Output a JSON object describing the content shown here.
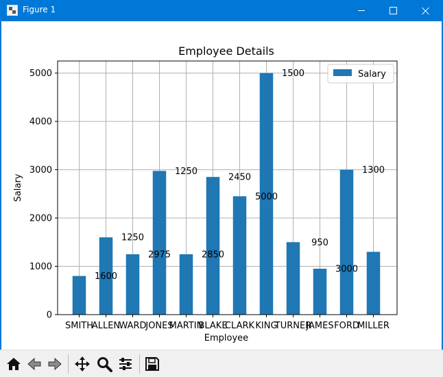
{
  "window": {
    "title": "Figure 1"
  },
  "toolbar": {
    "buttons": [
      {
        "name": "home-button",
        "icon": "home-icon"
      },
      {
        "name": "back-button",
        "icon": "back-arrow-icon"
      },
      {
        "name": "forward-button",
        "icon": "forward-arrow-icon"
      },
      {
        "name": "pan-button",
        "icon": "move-icon"
      },
      {
        "name": "zoom-button",
        "icon": "magnifier-icon"
      },
      {
        "name": "configure-subplots-button",
        "icon": "sliders-icon"
      },
      {
        "name": "save-button",
        "icon": "floppy-disk-icon"
      }
    ]
  },
  "chart_data": {
    "type": "bar",
    "title": "Employee Details",
    "xlabel": "Employee",
    "ylabel": "Salary",
    "categories": [
      "SMITH",
      "ALLEN",
      "WARD",
      "JONES",
      "MARTIN",
      "BLAKE",
      "CLARK",
      "KING",
      "TURNER",
      "JAMES",
      "FORD",
      "MILLER"
    ],
    "series": [
      {
        "name": "Salary",
        "values": [
          800,
          1600,
          1250,
          2975,
          1250,
          2850,
          2450,
          5000,
          1500,
          950,
          3000,
          1300
        ],
        "color": "#1f77b4"
      }
    ],
    "ylim": [
      0,
      5250
    ],
    "yticks": [
      0,
      1000,
      2000,
      3000,
      4000,
      5000
    ],
    "grid": true,
    "legend": "top-right",
    "annotations": [
      {
        "text": "1600",
        "x": 1,
        "y": 800
      },
      {
        "text": "1250",
        "x": 2,
        "y": 1600
      },
      {
        "text": "2975",
        "x": 3,
        "y": 1250
      },
      {
        "text": "1250",
        "x": 4,
        "y": 2975
      },
      {
        "text": "2850",
        "x": 5,
        "y": 1250
      },
      {
        "text": "2450",
        "x": 6,
        "y": 2850
      },
      {
        "text": "5000",
        "x": 7,
        "y": 2450
      },
      {
        "text": "1500",
        "x": 8,
        "y": 5000
      },
      {
        "text": "950",
        "x": 9,
        "y": 1500
      },
      {
        "text": "3000",
        "x": 10,
        "y": 950
      },
      {
        "text": "1300",
        "x": 11,
        "y": 3000
      }
    ]
  }
}
